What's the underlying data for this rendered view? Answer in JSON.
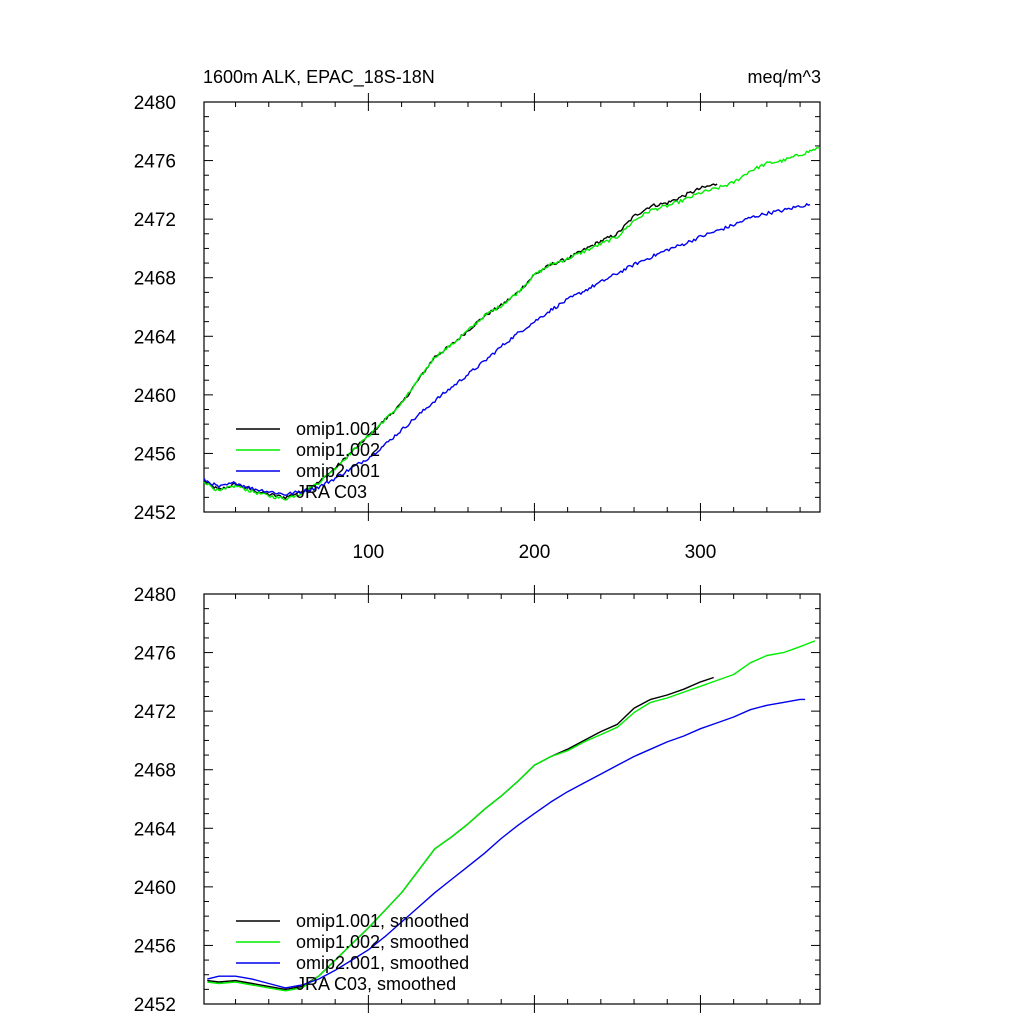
{
  "figure": {
    "title_left": "1600m ALK, EPAC_18S-18N",
    "title_right": "meq/m^3"
  },
  "chart_data": [
    {
      "type": "line",
      "panel": "top",
      "xlim": [
        1,
        372
      ],
      "ylim": [
        2452,
        2480
      ],
      "xticks": [
        100,
        200,
        300
      ],
      "xtick_labels": [
        "100",
        "200",
        "300"
      ],
      "yticks": [
        2452,
        2456,
        2460,
        2464,
        2468,
        2472,
        2476,
        2480
      ],
      "ytick_labels": [
        "2452",
        "2456",
        "2460",
        "2464",
        "2468",
        "2472",
        "2476",
        "2480"
      ],
      "legend_position": "lower-left",
      "legend": [
        "omip1.001",
        "omip1.002",
        "omip2.001",
        "JRA C03"
      ],
      "series": [
        {
          "name": "omip1.001",
          "color": "#000000",
          "x": [
            1,
            10,
            20,
            30,
            40,
            50,
            60,
            70,
            80,
            90,
            100,
            110,
            120,
            130,
            140,
            150,
            160,
            170,
            180,
            190,
            200,
            210,
            220,
            230,
            240,
            250,
            260,
            270,
            280,
            290,
            300,
            310
          ],
          "y": [
            2454.1,
            2453.5,
            2453.9,
            2453.5,
            2453.2,
            2453.0,
            2453.4,
            2454.0,
            2455.0,
            2456.1,
            2457.2,
            2458.3,
            2459.4,
            2461.0,
            2462.6,
            2463.4,
            2464.4,
            2465.4,
            2466.1,
            2467.0,
            2468.2,
            2468.9,
            2469.3,
            2469.9,
            2470.5,
            2471.0,
            2472.2,
            2472.9,
            2473.1,
            2473.6,
            2474.1,
            2474.4
          ],
          "noise": 0.12
        },
        {
          "name": "omip1.002",
          "color": "#00ee00",
          "x": [
            1,
            10,
            20,
            30,
            40,
            50,
            60,
            70,
            80,
            90,
            100,
            110,
            120,
            130,
            140,
            150,
            160,
            170,
            180,
            190,
            200,
            210,
            220,
            230,
            240,
            250,
            260,
            270,
            280,
            290,
            300,
            310,
            320,
            330,
            340,
            350,
            360,
            372
          ],
          "y": [
            2454.1,
            2453.4,
            2453.8,
            2453.4,
            2453.1,
            2452.9,
            2453.3,
            2454.0,
            2455.0,
            2456.1,
            2457.2,
            2458.3,
            2459.4,
            2461.0,
            2462.6,
            2463.4,
            2464.4,
            2465.4,
            2466.1,
            2467.0,
            2468.2,
            2468.9,
            2469.3,
            2469.8,
            2470.3,
            2470.8,
            2471.9,
            2472.6,
            2472.9,
            2473.3,
            2473.8,
            2474.1,
            2474.5,
            2475.3,
            2475.8,
            2476.0,
            2476.4,
            2476.9
          ],
          "noise": 0.12
        },
        {
          "name": "omip2.001",
          "color": "#0000ee",
          "x": [
            1,
            10,
            20,
            30,
            40,
            50,
            60,
            70,
            80,
            90,
            100,
            110,
            120,
            130,
            140,
            150,
            160,
            170,
            180,
            190,
            200,
            210,
            220,
            230,
            240,
            250,
            260,
            270,
            280,
            290,
            300,
            310,
            320,
            330,
            340,
            350,
            360,
            366
          ],
          "y": [
            2454.2,
            2453.7,
            2454.0,
            2453.6,
            2453.4,
            2453.2,
            2453.4,
            2453.7,
            2454.3,
            2455.0,
            2455.7,
            2456.6,
            2457.6,
            2458.6,
            2459.6,
            2460.5,
            2461.4,
            2462.3,
            2463.3,
            2464.2,
            2465.0,
            2465.8,
            2466.5,
            2467.1,
            2467.7,
            2468.3,
            2468.9,
            2469.4,
            2469.9,
            2470.3,
            2470.8,
            2471.2,
            2471.6,
            2472.1,
            2472.4,
            2472.6,
            2472.9,
            2473.0
          ],
          "noise": 0.12
        },
        {
          "name": "JRA C03",
          "color": "#1a80ff",
          "x": [],
          "y": []
        }
      ]
    },
    {
      "type": "line",
      "panel": "bottom",
      "xlim": [
        1,
        372
      ],
      "ylim": [
        2452,
        2480
      ],
      "xticks": [
        100,
        200,
        300
      ],
      "xtick_labels": [
        "",
        "",
        ""
      ],
      "yticks": [
        2452,
        2456,
        2460,
        2464,
        2468,
        2472,
        2476,
        2480
      ],
      "ytick_labels": [
        "2452",
        "2456",
        "2460",
        "2464",
        "2468",
        "2472",
        "2476",
        "2480"
      ],
      "legend_position": "lower-left",
      "legend": [
        "omip1.001, smoothed",
        "omip1.002, smoothed",
        "omip2.001, smoothed",
        "JRA C03, smoothed"
      ],
      "series": [
        {
          "name": "omip1.001, smoothed",
          "color": "#000000",
          "x": [
            3,
            10,
            20,
            30,
            40,
            50,
            60,
            70,
            80,
            90,
            100,
            110,
            120,
            130,
            140,
            150,
            160,
            170,
            180,
            190,
            200,
            210,
            220,
            230,
            240,
            250,
            260,
            270,
            280,
            290,
            300,
            308
          ],
          "y": [
            2453.6,
            2453.5,
            2453.6,
            2453.4,
            2453.2,
            2453.0,
            2453.2,
            2453.9,
            2455.0,
            2456.1,
            2457.2,
            2458.4,
            2459.6,
            2461.1,
            2462.6,
            2463.4,
            2464.3,
            2465.3,
            2466.2,
            2467.2,
            2468.3,
            2468.9,
            2469.4,
            2470.0,
            2470.6,
            2471.1,
            2472.2,
            2472.8,
            2473.1,
            2473.5,
            2474.0,
            2474.3
          ]
        },
        {
          "name": "omip1.002, smoothed",
          "color": "#00ee00",
          "x": [
            3,
            10,
            20,
            30,
            40,
            50,
            60,
            70,
            80,
            90,
            100,
            110,
            120,
            130,
            140,
            150,
            160,
            170,
            180,
            190,
            200,
            210,
            220,
            230,
            240,
            250,
            260,
            270,
            280,
            290,
            300,
            310,
            320,
            330,
            340,
            350,
            360,
            369
          ],
          "y": [
            2453.5,
            2453.4,
            2453.5,
            2453.3,
            2453.1,
            2452.9,
            2453.1,
            2453.9,
            2455.0,
            2456.1,
            2457.2,
            2458.4,
            2459.6,
            2461.1,
            2462.6,
            2463.4,
            2464.3,
            2465.3,
            2466.2,
            2467.2,
            2468.3,
            2468.9,
            2469.3,
            2469.9,
            2470.4,
            2470.9,
            2471.9,
            2472.6,
            2472.9,
            2473.3,
            2473.7,
            2474.1,
            2474.5,
            2475.3,
            2475.8,
            2476.0,
            2476.4,
            2476.8
          ]
        },
        {
          "name": "omip2.001, smoothed",
          "color": "#0000ee",
          "x": [
            3,
            10,
            20,
            30,
            40,
            50,
            60,
            70,
            80,
            90,
            100,
            110,
            120,
            130,
            140,
            150,
            160,
            170,
            180,
            190,
            200,
            210,
            220,
            230,
            240,
            250,
            260,
            270,
            280,
            290,
            300,
            310,
            320,
            330,
            340,
            350,
            360,
            363
          ],
          "y": [
            2453.7,
            2453.9,
            2453.9,
            2453.7,
            2453.4,
            2453.1,
            2453.3,
            2453.7,
            2454.3,
            2455.0,
            2455.7,
            2456.6,
            2457.6,
            2458.6,
            2459.6,
            2460.5,
            2461.4,
            2462.3,
            2463.3,
            2464.2,
            2465.0,
            2465.8,
            2466.5,
            2467.1,
            2467.7,
            2468.3,
            2468.9,
            2469.4,
            2469.9,
            2470.3,
            2470.8,
            2471.2,
            2471.6,
            2472.1,
            2472.4,
            2472.6,
            2472.8,
            2472.8
          ]
        },
        {
          "name": "JRA C03, smoothed",
          "color": "#1a80ff",
          "x": [],
          "y": []
        }
      ]
    }
  ]
}
